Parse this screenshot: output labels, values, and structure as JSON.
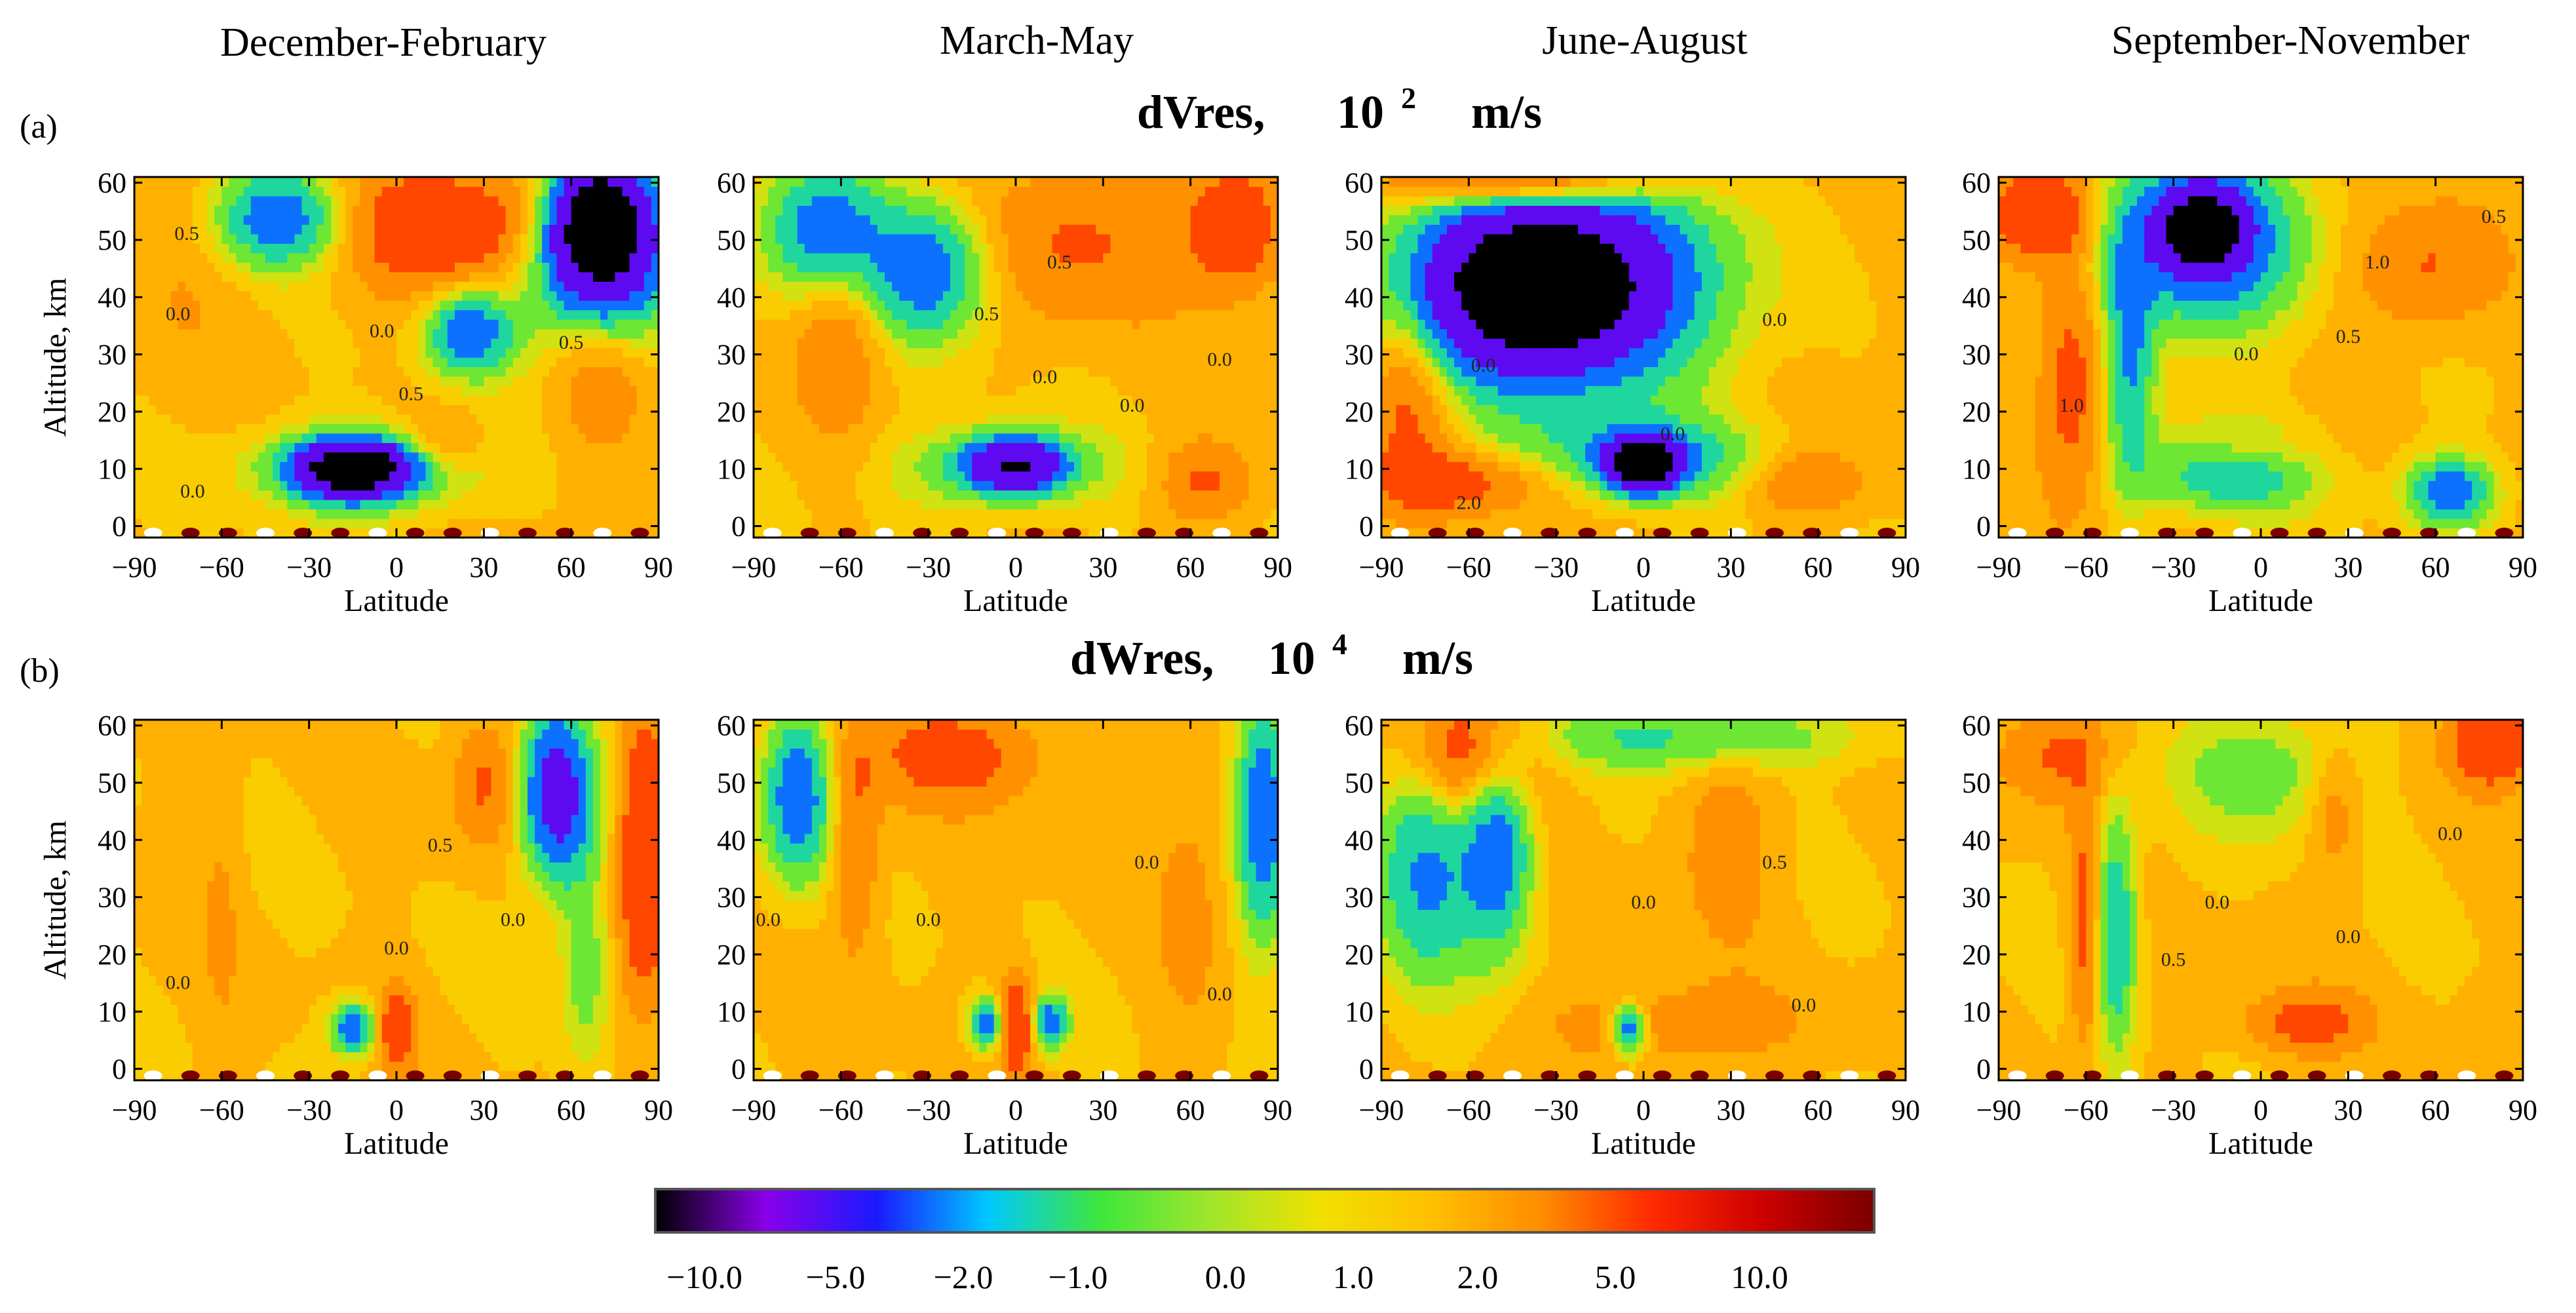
{
  "season_titles": [
    "December-February",
    "March-May",
    "June-August",
    "September-November"
  ],
  "rows": [
    {
      "tag": "(a)",
      "variable": "dVres,",
      "scale_base": "10",
      "scale_exp": "2",
      "units": "m/s"
    },
    {
      "tag": "(b)",
      "variable": "dWres,",
      "scale_base": "10",
      "scale_exp": "4",
      "units": "m/s"
    }
  ],
  "chart_data": [
    {
      "type": "heatmap",
      "title": "dVres, 10 2 m/s",
      "xlabel": "Latitude",
      "ylabel": "Altitude, km",
      "xlim": [
        -90,
        90
      ],
      "ylim": [
        -2,
        61
      ],
      "xticks": [
        "−90",
        "−60",
        "−30",
        "0",
        "30",
        "60",
        "90"
      ],
      "yticks": [
        "0",
        "10",
        "20",
        "30",
        "40",
        "50",
        "60"
      ],
      "panels": [
        {
          "season": "December-February",
          "blobs": [
            {
              "lat": 20,
              "alt": 52,
              "sx": 30,
              "sy": 8,
              "v": 2.5
            },
            {
              "lat": 70,
              "alt": 53,
              "sx": 10,
              "sy": 7,
              "v": -12
            },
            {
              "lat": 70,
              "alt": 46,
              "sx": 18,
              "sy": 10,
              "v": -5
            },
            {
              "lat": -40,
              "alt": 54,
              "sx": 15,
              "sy": 6,
              "v": -4
            },
            {
              "lat": 25,
              "alt": 34,
              "sx": 10,
              "sy": 5,
              "v": -4
            },
            {
              "lat": -15,
              "alt": 10,
              "sx": 12,
              "sy": 3,
              "v": -12
            },
            {
              "lat": -10,
              "alt": 10,
              "sx": 25,
              "sy": 5,
              "v": -3
            },
            {
              "lat": 70,
              "alt": 28,
              "sx": 12,
              "sy": 10,
              "v": 1.5
            },
            {
              "lat": -75,
              "alt": 45,
              "sx": 15,
              "sy": 15,
              "v": 0.5
            },
            {
              "lat": 15,
              "alt": 14,
              "sx": 10,
              "sy": 4,
              "v": 1.5
            }
          ],
          "labels": [
            {
              "lat": -72,
              "alt": 50,
              "text": "0.5"
            },
            {
              "lat": -75,
              "alt": 36,
              "text": "0.0"
            },
            {
              "lat": -5,
              "alt": 33,
              "text": "0.0"
            },
            {
              "lat": 5,
              "alt": 22,
              "text": "0.5"
            },
            {
              "lat": 60,
              "alt": 31,
              "text": "0.5"
            },
            {
              "lat": -70,
              "alt": 5,
              "text": "0.0"
            }
          ]
        },
        {
          "season": "March-May",
          "blobs": [
            {
              "lat": 75,
              "alt": 52,
              "sx": 12,
              "sy": 8,
              "v": 2.5
            },
            {
              "lat": -65,
              "alt": 52,
              "sx": 14,
              "sy": 8,
              "v": -4
            },
            {
              "lat": -30,
              "alt": 45,
              "sx": 14,
              "sy": 8,
              "v": -4
            },
            {
              "lat": 20,
              "alt": 50,
              "sx": 25,
              "sy": 10,
              "v": 1.5
            },
            {
              "lat": 0,
              "alt": 11,
              "sx": 10,
              "sy": 3,
              "v": -10
            },
            {
              "lat": 0,
              "alt": 12,
              "sx": 7,
              "sy": 2.5,
              "v": 3
            },
            {
              "lat": -5,
              "alt": 10,
              "sx": 25,
              "sy": 5,
              "v": -2
            },
            {
              "lat": -60,
              "alt": 35,
              "sx": 10,
              "sy": 12,
              "v": 1.5
            },
            {
              "lat": 65,
              "alt": 8,
              "sx": 12,
              "sy": 5,
              "v": 1.5
            }
          ],
          "labels": [
            {
              "lat": 10,
              "alt": 25,
              "text": "0.0"
            },
            {
              "lat": 40,
              "alt": 20,
              "text": "0.0"
            },
            {
              "lat": 70,
              "alt": 28,
              "text": "0.0"
            },
            {
              "lat": -10,
              "alt": 36,
              "text": "0.5"
            },
            {
              "lat": 15,
              "alt": 45,
              "text": "0.5"
            }
          ]
        },
        {
          "season": "June-August",
          "blobs": [
            {
              "lat": -35,
              "alt": 42,
              "sx": 22,
              "sy": 8,
              "v": -12
            },
            {
              "lat": -30,
              "alt": 42,
              "sx": 40,
              "sy": 14,
              "v": -5
            },
            {
              "lat": -40,
              "alt": 60,
              "sx": 30,
              "sy": 3,
              "v": 4
            },
            {
              "lat": -80,
              "alt": 25,
              "sx": 10,
              "sy": 14,
              "v": 2
            },
            {
              "lat": 0,
              "alt": 11,
              "sx": 8,
              "sy": 3,
              "v": -12
            },
            {
              "lat": 0,
              "alt": 12,
              "sx": 30,
              "sy": 5,
              "v": -2.5
            },
            {
              "lat": -60,
              "alt": 8,
              "sx": 25,
              "sy": 4,
              "v": 2
            },
            {
              "lat": 55,
              "alt": 8,
              "sx": 15,
              "sy": 4,
              "v": 1.5
            },
            {
              "lat": 60,
              "alt": 40,
              "sx": 30,
              "sy": 20,
              "v": 0.3
            }
          ],
          "labels": [
            {
              "lat": -55,
              "alt": 27,
              "text": "0.0"
            },
            {
              "lat": 45,
              "alt": 35,
              "text": "0.0"
            },
            {
              "lat": 10,
              "alt": 15,
              "text": "0.0"
            },
            {
              "lat": -60,
              "alt": 3,
              "text": "2.0"
            }
          ]
        },
        {
          "season": "September-November",
          "blobs": [
            {
              "lat": -75,
              "alt": 55,
              "sx": 12,
              "sy": 6,
              "v": 3
            },
            {
              "lat": -20,
              "alt": 50,
              "sx": 22,
              "sy": 10,
              "v": -5
            },
            {
              "lat": -20,
              "alt": 52,
              "sx": 8,
              "sy": 4,
              "v": -12
            },
            {
              "lat": 55,
              "alt": 45,
              "sx": 18,
              "sy": 8,
              "v": 1.5
            },
            {
              "lat": -65,
              "alt": 25,
              "sx": 8,
              "sy": 15,
              "v": 2
            },
            {
              "lat": -45,
              "alt": 30,
              "sx": 6,
              "sy": 15,
              "v": -3
            },
            {
              "lat": -10,
              "alt": 10,
              "sx": 20,
              "sy": 5,
              "v": -3
            },
            {
              "lat": -5,
              "alt": 13,
              "sx": 15,
              "sy": 2.5,
              "v": 1.5
            },
            {
              "lat": 65,
              "alt": 6,
              "sx": 10,
              "sy": 4,
              "v": -4
            }
          ],
          "labels": [
            {
              "lat": -5,
              "alt": 29,
              "text": "0.0"
            },
            {
              "lat": 30,
              "alt": 32,
              "text": "0.5"
            },
            {
              "lat": 40,
              "alt": 45,
              "text": "1.0"
            },
            {
              "lat": -65,
              "alt": 20,
              "text": "1.0"
            },
            {
              "lat": 80,
              "alt": 53,
              "text": "0.5"
            }
          ]
        }
      ]
    },
    {
      "type": "heatmap",
      "title": "dWres, 10 4 m/s",
      "xlabel": "Latitude",
      "ylabel": "Altitude, km",
      "xlim": [
        -90,
        90
      ],
      "ylim": [
        -2,
        61
      ],
      "xticks": [
        "−90",
        "−60",
        "−30",
        "0",
        "30",
        "60",
        "90"
      ],
      "yticks": [
        "0",
        "10",
        "20",
        "30",
        "40",
        "50",
        "60"
      ],
      "panels": [
        {
          "season": "December-February",
          "blobs": [
            {
              "lat": 55,
              "alt": 48,
              "sx": 8,
              "sy": 10,
              "v": -6
            },
            {
              "lat": 85,
              "alt": 38,
              "sx": 6,
              "sy": 18,
              "v": 3
            },
            {
              "lat": 0,
              "alt": 7,
              "sx": 4,
              "sy": 5,
              "v": 2.5
            },
            {
              "lat": -15,
              "alt": 7,
              "sx": 5,
              "sy": 3,
              "v": -4
            },
            {
              "lat": 30,
              "alt": 50,
              "sx": 8,
              "sy": 8,
              "v": 1.5
            },
            {
              "lat": -60,
              "alt": 30,
              "sx": 5,
              "sy": 20,
              "v": 0.6
            },
            {
              "lat": 65,
              "alt": 20,
              "sx": 6,
              "sy": 14,
              "v": -1.5
            }
          ],
          "labels": [
            {
              "lat": 0,
              "alt": 20,
              "text": "0.0"
            },
            {
              "lat": 40,
              "alt": 25,
              "text": "0.0"
            },
            {
              "lat": -75,
              "alt": 14,
              "text": "0.0"
            },
            {
              "lat": 15,
              "alt": 38,
              "text": "0.5"
            }
          ]
        },
        {
          "season": "March-May",
          "blobs": [
            {
              "lat": -75,
              "alt": 48,
              "sx": 8,
              "sy": 10,
              "v": -4
            },
            {
              "lat": 85,
              "alt": 45,
              "sx": 6,
              "sy": 15,
              "v": -4
            },
            {
              "lat": -20,
              "alt": 55,
              "sx": 20,
              "sy": 6,
              "v": 2
            },
            {
              "lat": -55,
              "alt": 40,
              "sx": 6,
              "sy": 15,
              "v": 1.5
            },
            {
              "lat": 0,
              "alt": 8,
              "sx": 4,
              "sy": 6,
              "v": 3
            },
            {
              "lat": -10,
              "alt": 8,
              "sx": 4,
              "sy": 3,
              "v": -4
            },
            {
              "lat": 12,
              "alt": 8,
              "sx": 4,
              "sy": 3,
              "v": -4
            },
            {
              "lat": 60,
              "alt": 30,
              "sx": 8,
              "sy": 18,
              "v": 0.8
            }
          ],
          "labels": [
            {
              "lat": -85,
              "alt": 25,
              "text": "0.0"
            },
            {
              "lat": -30,
              "alt": 25,
              "text": "0.0"
            },
            {
              "lat": 45,
              "alt": 35,
              "text": "0.0"
            },
            {
              "lat": 70,
              "alt": 12,
              "text": "0.0"
            }
          ]
        },
        {
          "season": "June-August",
          "blobs": [
            {
              "lat": -60,
              "alt": 55,
              "sx": 15,
              "sy": 8,
              "v": 3
            },
            {
              "lat": -75,
              "alt": 35,
              "sx": 12,
              "sy": 15,
              "v": -3
            },
            {
              "lat": -50,
              "alt": 40,
              "sx": 8,
              "sy": 12,
              "v": -4
            },
            {
              "lat": 15,
              "alt": 58,
              "sx": 40,
              "sy": 4,
              "v": -2
            },
            {
              "lat": -5,
              "alt": 7,
              "sx": 4,
              "sy": 3,
              "v": -4
            },
            {
              "lat": 10,
              "alt": 8,
              "sx": 30,
              "sy": 5,
              "v": 1.2
            },
            {
              "lat": 30,
              "alt": 40,
              "sx": 12,
              "sy": 12,
              "v": 1
            }
          ],
          "labels": [
            {
              "lat": 0,
              "alt": 28,
              "text": "0.0"
            },
            {
              "lat": 45,
              "alt": 35,
              "text": "0.5"
            },
            {
              "lat": 55,
              "alt": 10,
              "text": "0.0"
            }
          ]
        },
        {
          "season": "September-November",
          "blobs": [
            {
              "lat": 80,
              "alt": 57,
              "sx": 10,
              "sy": 5,
              "v": 3
            },
            {
              "lat": -50,
              "alt": 25,
              "sx": 5,
              "sy": 15,
              "v": -3
            },
            {
              "lat": -60,
              "alt": 25,
              "sx": 4,
              "sy": 15,
              "v": 2
            },
            {
              "lat": -70,
              "alt": 55,
              "sx": 15,
              "sy": 6,
              "v": 1.5
            },
            {
              "lat": 15,
              "alt": 8,
              "sx": 15,
              "sy": 4,
              "v": 1.8
            },
            {
              "lat": 0,
              "alt": 52,
              "sx": 20,
              "sy": 8,
              "v": -1.5
            },
            {
              "lat": 25,
              "alt": 45,
              "sx": 6,
              "sy": 8,
              "v": 1.2
            }
          ],
          "labels": [
            {
              "lat": -15,
              "alt": 28,
              "text": "0.0"
            },
            {
              "lat": 30,
              "alt": 22,
              "text": "0.0"
            },
            {
              "lat": 65,
              "alt": 40,
              "text": "0.0"
            },
            {
              "lat": -30,
              "alt": 18,
              "text": "0.5"
            }
          ]
        }
      ]
    }
  ],
  "colorbar": {
    "labels": [
      "−10.0",
      "−5.0",
      "−2.0",
      "−1.0",
      "0.0",
      "1.0",
      "2.0",
      "5.0",
      "10.0"
    ],
    "stops": [
      "#000000",
      "#8a00e8",
      "#1a1aff",
      "#00c8ff",
      "#3de63d",
      "#9fe62b",
      "#f0e000",
      "#ffc000",
      "#ff8c00",
      "#ff2a00",
      "#cc0000",
      "#7a0000"
    ],
    "anchor_values": [
      -12,
      -10,
      -5,
      -3,
      -2,
      -1,
      -0.5,
      0,
      1,
      2,
      5,
      12
    ]
  }
}
